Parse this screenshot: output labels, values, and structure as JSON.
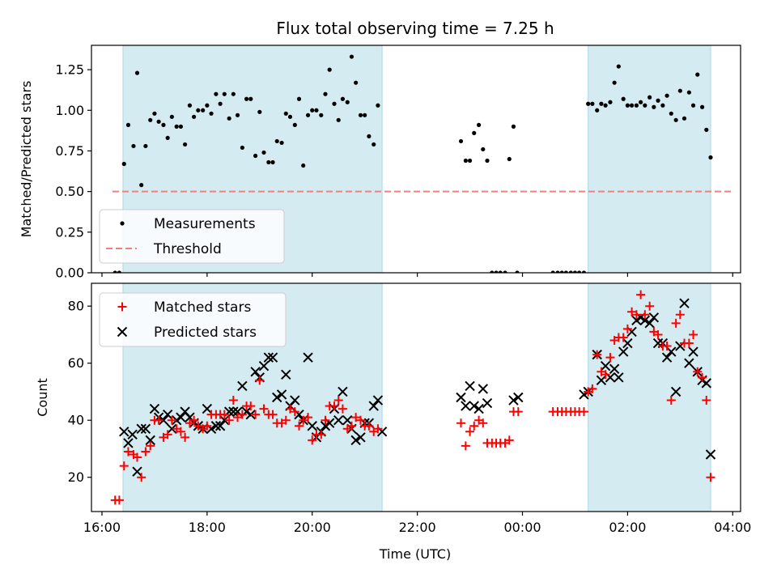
{
  "chart_data": {
    "type": "scatter",
    "title": "Flux total observing time = 7.25 h",
    "xlabel": "Time (UTC)",
    "x_tick_labels": [
      "16:00",
      "18:00",
      "20:00",
      "22:00",
      "00:00",
      "02:00",
      "04:00"
    ],
    "x_tick_hours": [
      16,
      18,
      20,
      22,
      24,
      26,
      28
    ],
    "xlim_hours": [
      15.8,
      28.15
    ],
    "shaded_intervals_hours": [
      [
        16.4,
        21.33
      ],
      [
        25.25,
        27.58
      ]
    ],
    "colors": {
      "shade": "#add8e6",
      "measure": "#000000",
      "threshold": "#f08080",
      "matched": "#ff0000",
      "predicted": "#000000"
    },
    "top": {
      "ylabel": "Matched/Predicted stars",
      "ylim": [
        0,
        1.4
      ],
      "y_ticks": [
        0,
        0.25,
        0.5,
        0.75,
        1.0,
        1.25
      ],
      "y_tick_labels": [
        "0.00",
        "0.25",
        "0.50",
        "0.75",
        "1.00",
        "1.25"
      ],
      "legend": [
        {
          "label": "Measurements"
        },
        {
          "label": "Threshold"
        }
      ],
      "threshold": {
        "y": 0.5,
        "x_range_hours": [
          16.2,
          28.0
        ]
      },
      "measurements": [
        [
          16.25,
          0.0
        ],
        [
          16.33,
          0.0
        ],
        [
          16.42,
          0.67
        ],
        [
          16.5,
          0.91
        ],
        [
          16.6,
          0.78
        ],
        [
          16.67,
          1.23
        ],
        [
          16.75,
          0.54
        ],
        [
          16.83,
          0.78
        ],
        [
          16.92,
          0.94
        ],
        [
          17.0,
          0.98
        ],
        [
          17.08,
          0.93
        ],
        [
          17.17,
          0.91
        ],
        [
          17.25,
          0.83
        ],
        [
          17.33,
          0.96
        ],
        [
          17.42,
          0.9
        ],
        [
          17.5,
          0.9
        ],
        [
          17.58,
          0.79
        ],
        [
          17.67,
          1.03
        ],
        [
          17.75,
          0.96
        ],
        [
          17.83,
          1.0
        ],
        [
          17.92,
          1.0
        ],
        [
          18.0,
          1.03
        ],
        [
          18.08,
          0.98
        ],
        [
          18.17,
          1.1
        ],
        [
          18.25,
          1.04
        ],
        [
          18.33,
          1.1
        ],
        [
          18.42,
          0.95
        ],
        [
          18.5,
          1.1
        ],
        [
          18.58,
          0.97
        ],
        [
          18.67,
          0.77
        ],
        [
          18.75,
          1.07
        ],
        [
          18.83,
          1.07
        ],
        [
          18.92,
          0.72
        ],
        [
          19.0,
          0.99
        ],
        [
          19.08,
          0.74
        ],
        [
          19.17,
          0.68
        ],
        [
          19.25,
          0.68
        ],
        [
          19.33,
          0.81
        ],
        [
          19.42,
          0.8
        ],
        [
          19.5,
          0.98
        ],
        [
          19.58,
          0.96
        ],
        [
          19.67,
          0.91
        ],
        [
          19.75,
          1.07
        ],
        [
          19.83,
          0.66
        ],
        [
          19.92,
          0.97
        ],
        [
          20.0,
          1.0
        ],
        [
          20.08,
          1.0
        ],
        [
          20.17,
          0.97
        ],
        [
          20.25,
          1.1
        ],
        [
          20.33,
          1.25
        ],
        [
          20.42,
          1.04
        ],
        [
          20.5,
          0.94
        ],
        [
          20.58,
          1.07
        ],
        [
          20.67,
          1.05
        ],
        [
          20.75,
          1.33
        ],
        [
          20.83,
          1.17
        ],
        [
          20.92,
          0.97
        ],
        [
          21.0,
          0.97
        ],
        [
          21.08,
          0.84
        ],
        [
          21.17,
          0.79
        ],
        [
          21.25,
          1.03
        ],
        [
          22.83,
          0.81
        ],
        [
          22.92,
          0.69
        ],
        [
          23.0,
          0.69
        ],
        [
          23.08,
          0.86
        ],
        [
          23.17,
          0.91
        ],
        [
          23.25,
          0.76
        ],
        [
          23.33,
          0.69
        ],
        [
          23.42,
          0.0
        ],
        [
          23.5,
          0.0
        ],
        [
          23.58,
          0.0
        ],
        [
          23.67,
          0.0
        ],
        [
          23.75,
          0.7
        ],
        [
          23.83,
          0.9
        ],
        [
          23.9,
          0.0
        ],
        [
          24.58,
          0.0
        ],
        [
          24.67,
          0.0
        ],
        [
          24.75,
          0.0
        ],
        [
          24.83,
          0.0
        ],
        [
          24.92,
          0.0
        ],
        [
          25.0,
          0.0
        ],
        [
          25.08,
          0.0
        ],
        [
          25.17,
          0.0
        ],
        [
          25.25,
          1.04
        ],
        [
          25.33,
          1.04
        ],
        [
          25.42,
          1.0
        ],
        [
          25.5,
          1.04
        ],
        [
          25.58,
          1.03
        ],
        [
          25.67,
          1.05
        ],
        [
          25.75,
          1.17
        ],
        [
          25.83,
          1.27
        ],
        [
          25.92,
          1.07
        ],
        [
          26.0,
          1.03
        ],
        [
          26.08,
          1.03
        ],
        [
          26.17,
          1.03
        ],
        [
          26.25,
          1.05
        ],
        [
          26.33,
          1.03
        ],
        [
          26.42,
          1.08
        ],
        [
          26.5,
          1.02
        ],
        [
          26.58,
          1.06
        ],
        [
          26.67,
          1.03
        ],
        [
          26.75,
          1.09
        ],
        [
          26.83,
          0.98
        ],
        [
          26.92,
          0.94
        ],
        [
          27.0,
          1.12
        ],
        [
          27.08,
          0.95
        ],
        [
          27.17,
          1.11
        ],
        [
          27.25,
          1.03
        ],
        [
          27.33,
          1.22
        ],
        [
          27.42,
          1.02
        ],
        [
          27.5,
          0.88
        ],
        [
          27.58,
          0.71
        ]
      ]
    },
    "bottom": {
      "ylabel": "Count",
      "ylim": [
        8,
        88
      ],
      "y_ticks": [
        20,
        40,
        60,
        80
      ],
      "y_tick_labels": [
        "20",
        "40",
        "60",
        "80"
      ],
      "legend": [
        {
          "label": "Matched stars"
        },
        {
          "label": "Predicted stars"
        }
      ],
      "matched": [
        [
          16.25,
          12
        ],
        [
          16.33,
          12
        ],
        [
          16.42,
          24
        ],
        [
          16.5,
          29
        ],
        [
          16.6,
          28
        ],
        [
          16.67,
          27
        ],
        [
          16.75,
          20
        ],
        [
          16.83,
          29
        ],
        [
          16.92,
          31
        ],
        [
          17.0,
          40
        ],
        [
          17.08,
          40
        ],
        [
          17.17,
          34
        ],
        [
          17.25,
          35
        ],
        [
          17.33,
          40
        ],
        [
          17.42,
          37
        ],
        [
          17.5,
          36
        ],
        [
          17.58,
          34
        ],
        [
          17.67,
          39
        ],
        [
          17.75,
          40
        ],
        [
          17.83,
          38
        ],
        [
          17.92,
          37
        ],
        [
          18.0,
          38
        ],
        [
          18.08,
          42
        ],
        [
          18.17,
          42
        ],
        [
          18.25,
          42
        ],
        [
          18.33,
          42
        ],
        [
          18.42,
          40
        ],
        [
          18.5,
          47
        ],
        [
          18.58,
          41
        ],
        [
          18.67,
          42
        ],
        [
          18.75,
          45
        ],
        [
          18.83,
          45
        ],
        [
          18.92,
          42
        ],
        [
          19.0,
          54
        ],
        [
          19.08,
          44
        ],
        [
          19.17,
          42
        ],
        [
          19.25,
          42
        ],
        [
          19.33,
          39
        ],
        [
          19.42,
          39
        ],
        [
          19.5,
          40
        ],
        [
          19.58,
          44
        ],
        [
          19.67,
          43
        ],
        [
          19.75,
          38
        ],
        [
          19.83,
          40
        ],
        [
          19.92,
          41
        ],
        [
          20.0,
          33
        ],
        [
          20.08,
          35
        ],
        [
          20.17,
          35
        ],
        [
          20.25,
          40
        ],
        [
          20.33,
          45
        ],
        [
          20.42,
          45
        ],
        [
          20.5,
          47
        ],
        [
          20.58,
          44
        ],
        [
          20.67,
          37
        ],
        [
          20.75,
          38
        ],
        [
          20.83,
          41
        ],
        [
          20.92,
          40
        ],
        [
          21.0,
          38
        ],
        [
          21.08,
          38
        ],
        [
          21.17,
          36
        ],
        [
          21.25,
          37
        ],
        [
          22.83,
          39
        ],
        [
          22.92,
          31
        ],
        [
          23.0,
          36
        ],
        [
          23.08,
          38
        ],
        [
          23.17,
          40
        ],
        [
          23.25,
          39
        ],
        [
          23.33,
          32
        ],
        [
          23.42,
          32
        ],
        [
          23.5,
          32
        ],
        [
          23.58,
          32
        ],
        [
          23.67,
          32
        ],
        [
          23.75,
          33
        ],
        [
          23.83,
          43
        ],
        [
          23.92,
          43
        ],
        [
          24.58,
          43
        ],
        [
          24.67,
          43
        ],
        [
          24.75,
          43
        ],
        [
          24.83,
          43
        ],
        [
          24.92,
          43
        ],
        [
          25.0,
          43
        ],
        [
          25.08,
          43
        ],
        [
          25.17,
          43
        ],
        [
          25.25,
          50
        ],
        [
          25.33,
          51
        ],
        [
          25.42,
          63
        ],
        [
          25.5,
          57
        ],
        [
          25.58,
          56
        ],
        [
          25.67,
          62
        ],
        [
          25.75,
          68
        ],
        [
          25.83,
          69
        ],
        [
          25.92,
          69
        ],
        [
          26.0,
          72
        ],
        [
          26.08,
          78
        ],
        [
          26.17,
          77
        ],
        [
          26.25,
          84
        ],
        [
          26.33,
          77
        ],
        [
          26.42,
          80
        ],
        [
          26.5,
          71
        ],
        [
          26.58,
          70
        ],
        [
          26.67,
          66
        ],
        [
          26.75,
          66
        ],
        [
          26.83,
          47
        ],
        [
          26.92,
          74
        ],
        [
          27.0,
          77
        ],
        [
          27.08,
          67
        ],
        [
          27.17,
          67
        ],
        [
          27.25,
          70
        ],
        [
          27.33,
          57
        ],
        [
          27.42,
          55
        ],
        [
          27.5,
          47
        ],
        [
          27.58,
          20
        ]
      ],
      "predicted": [
        [
          16.42,
          36
        ],
        [
          16.5,
          32
        ],
        [
          16.58,
          35
        ],
        [
          16.67,
          22
        ],
        [
          16.75,
          37
        ],
        [
          16.83,
          37
        ],
        [
          16.92,
          33
        ],
        [
          17.0,
          44
        ],
        [
          17.08,
          41
        ],
        [
          17.17,
          40
        ],
        [
          17.25,
          42
        ],
        [
          17.33,
          37
        ],
        [
          17.42,
          40
        ],
        [
          17.5,
          41
        ],
        [
          17.58,
          43
        ],
        [
          17.67,
          41
        ],
        [
          17.75,
          39
        ],
        [
          17.83,
          38
        ],
        [
          17.92,
          37
        ],
        [
          18.0,
          44
        ],
        [
          18.08,
          37
        ],
        [
          18.17,
          38
        ],
        [
          18.25,
          38
        ],
        [
          18.33,
          40
        ],
        [
          18.42,
          43
        ],
        [
          18.5,
          43
        ],
        [
          18.58,
          43
        ],
        [
          18.67,
          52
        ],
        [
          18.75,
          43
        ],
        [
          18.83,
          42
        ],
        [
          18.92,
          57
        ],
        [
          19.0,
          55
        ],
        [
          19.08,
          59
        ],
        [
          19.17,
          62
        ],
        [
          19.25,
          62
        ],
        [
          19.33,
          48
        ],
        [
          19.42,
          49
        ],
        [
          19.5,
          56
        ],
        [
          19.58,
          45
        ],
        [
          19.67,
          47
        ],
        [
          19.75,
          42
        ],
        [
          19.83,
          40
        ],
        [
          19.92,
          62
        ],
        [
          20.0,
          38
        ],
        [
          20.08,
          34
        ],
        [
          20.17,
          36
        ],
        [
          20.25,
          38
        ],
        [
          20.33,
          39
        ],
        [
          20.42,
          44
        ],
        [
          20.5,
          40
        ],
        [
          20.58,
          50
        ],
        [
          20.67,
          40
        ],
        [
          20.75,
          37
        ],
        [
          20.83,
          33
        ],
        [
          20.92,
          34
        ],
        [
          21.0,
          39
        ],
        [
          21.08,
          39
        ],
        [
          21.17,
          45
        ],
        [
          21.25,
          47
        ],
        [
          21.33,
          36
        ],
        [
          22.83,
          48
        ],
        [
          22.92,
          45
        ],
        [
          23.0,
          52
        ],
        [
          23.08,
          45
        ],
        [
          23.17,
          44
        ],
        [
          23.25,
          51
        ],
        [
          23.33,
          46
        ],
        [
          23.83,
          47
        ],
        [
          23.92,
          48
        ],
        [
          25.17,
          49
        ],
        [
          25.25,
          50
        ],
        [
          25.42,
          63
        ],
        [
          25.5,
          54
        ],
        [
          25.58,
          59
        ],
        [
          25.67,
          55
        ],
        [
          25.75,
          58
        ],
        [
          25.83,
          55
        ],
        [
          25.92,
          64
        ],
        [
          26.0,
          67
        ],
        [
          26.08,
          71
        ],
        [
          26.17,
          75
        ],
        [
          26.25,
          76
        ],
        [
          26.33,
          75
        ],
        [
          26.42,
          74
        ],
        [
          26.5,
          76
        ],
        [
          26.58,
          67
        ],
        [
          26.67,
          67
        ],
        [
          26.75,
          62
        ],
        [
          26.83,
          64
        ],
        [
          26.92,
          50
        ],
        [
          27.0,
          66
        ],
        [
          27.08,
          81
        ],
        [
          27.17,
          60
        ],
        [
          27.25,
          64
        ],
        [
          27.33,
          57
        ],
        [
          27.42,
          54
        ],
        [
          27.5,
          53
        ],
        [
          27.58,
          28
        ]
      ]
    }
  }
}
